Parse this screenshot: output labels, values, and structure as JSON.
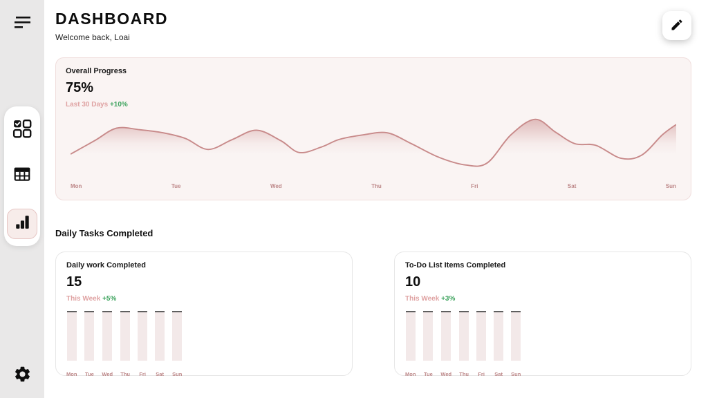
{
  "colors": {
    "sidebar_bg": "#e9e8e8",
    "text_dark": "#111111",
    "rose_line": "#c88a8a",
    "rose_text": "#dfa2a2",
    "axis_text": "#bd8788",
    "green": "#3fa45f",
    "card_bg": "#faf4f3",
    "card_border": "#f0dddc",
    "border_gray": "#e6e6e6",
    "bar_fill": "#f3e9e9",
    "bar_cap": "#5f5f5f",
    "active_bg": "#f7ecea",
    "active_border": "#e6c6c4"
  },
  "sidebar": {
    "items": [
      {
        "name": "tasks",
        "icon": "checkbox-grid-icon",
        "active": false
      },
      {
        "name": "table",
        "icon": "table-icon",
        "active": false
      },
      {
        "name": "analytics",
        "icon": "bar-chart-icon",
        "active": true
      }
    ]
  },
  "header": {
    "title": "DASHBOARD",
    "subtitle": "Welcome back, Loai"
  },
  "overall_progress": {
    "label": "Overall Progress",
    "value": "75%",
    "period": "Last 30 Days",
    "delta": "+10%"
  },
  "section": {
    "title": "Daily Tasks Completed"
  },
  "cards": [
    {
      "label": "Daily work Completed",
      "value": "15",
      "period": "This Week",
      "delta": "+5%"
    },
    {
      "label": "To-Do List Items Completed",
      "value": "10",
      "period": "This Week",
      "delta": "+3%"
    }
  ],
  "chart_data": [
    {
      "type": "area",
      "title": "Overall Progress - Last 30 Days",
      "x_labels": [
        "Mon",
        "Tue",
        "Wed",
        "Thu",
        "Fri",
        "Sat",
        "Sun"
      ],
      "points": [
        [
          0,
          30
        ],
        [
          4,
          56
        ],
        [
          7.6,
          80
        ],
        [
          11.4,
          77
        ],
        [
          15.3,
          71
        ],
        [
          19,
          60
        ],
        [
          22.7,
          39
        ],
        [
          26.7,
          58
        ],
        [
          30.7,
          76
        ],
        [
          34.7,
          56
        ],
        [
          37.8,
          33
        ],
        [
          41.5,
          44
        ],
        [
          44.3,
          58
        ],
        [
          48.3,
          67
        ],
        [
          52.3,
          71
        ],
        [
          56.3,
          50
        ],
        [
          60.8,
          24
        ],
        [
          65.3,
          9
        ],
        [
          68.8,
          13
        ],
        [
          72.7,
          67
        ],
        [
          76.7,
          97
        ],
        [
          80.1,
          72
        ],
        [
          83.3,
          50
        ],
        [
          86.7,
          47
        ],
        [
          90.9,
          22
        ],
        [
          94.3,
          28
        ],
        [
          97.7,
          67
        ],
        [
          100,
          87
        ]
      ],
      "y_range": [
        0,
        100
      ],
      "grid": false,
      "legend": false
    },
    {
      "type": "bar",
      "title": "Daily work Completed",
      "categories": [
        "Mon",
        "Tue",
        "Wed",
        "Thu",
        "Fri",
        "Sat",
        "Sun"
      ],
      "values": [
        100,
        100,
        100,
        100,
        100,
        100,
        100
      ]
    },
    {
      "type": "bar",
      "title": "To-Do List Items Completed",
      "categories": [
        "Mon",
        "Tue",
        "Wed",
        "Thu",
        "Fri",
        "Sat",
        "Sun"
      ],
      "values": [
        100,
        100,
        100,
        100,
        100,
        100,
        100
      ]
    }
  ]
}
